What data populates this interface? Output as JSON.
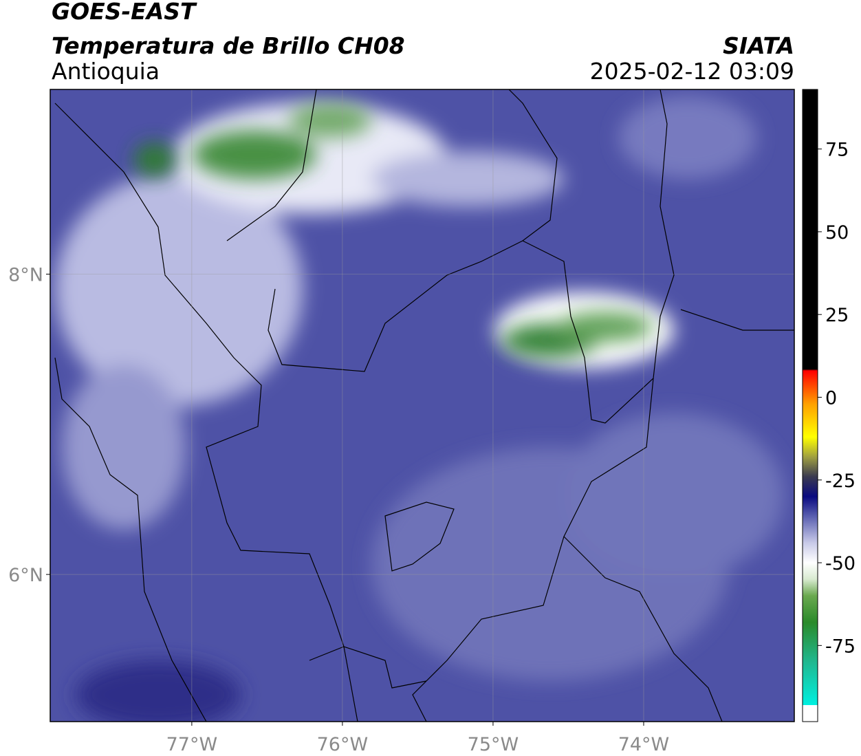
{
  "header": {
    "title": "GOES-EAST",
    "subtitle": "Temperatura de Brillo CH08",
    "region": "Antioquia",
    "source": "SIATA",
    "timestamp": "2025-02-12 03:09"
  },
  "map": {
    "xlim": [
      -77.94,
      -73.0
    ],
    "ylim": [
      5.02,
      9.23
    ],
    "xticks": [
      {
        "value": -77,
        "label": "77°W"
      },
      {
        "value": -76,
        "label": "76°W"
      },
      {
        "value": -75,
        "label": "75°W"
      },
      {
        "value": -74,
        "label": "74°W"
      }
    ],
    "yticks": [
      {
        "value": 8,
        "label": "8°N"
      },
      {
        "value": 6,
        "label": "6°N"
      }
    ],
    "grid": true
  },
  "colorbar": {
    "lim": [
      -98,
      93
    ],
    "ticks": [
      75,
      50,
      25,
      0,
      -25,
      -50,
      -75
    ],
    "stops": [
      {
        "value": -98,
        "color": "#ffffff"
      },
      {
        "value": -93,
        "color": "#ffffff"
      },
      {
        "value": -93,
        "color": "#00f0e0"
      },
      {
        "value": -80,
        "color": "#20b890"
      },
      {
        "value": -68,
        "color": "#2a8a2a"
      },
      {
        "value": -60,
        "color": "#6aa84f"
      },
      {
        "value": -55,
        "color": "#d8ead0"
      },
      {
        "value": -50,
        "color": "#ffffff"
      },
      {
        "value": -44,
        "color": "#c8cae8"
      },
      {
        "value": -36,
        "color": "#5a5fb0"
      },
      {
        "value": -30,
        "color": "#0a0a80"
      },
      {
        "value": -24,
        "color": "#3a3a50"
      },
      {
        "value": -18,
        "color": "#a0a040"
      },
      {
        "value": -12,
        "color": "#ffff00"
      },
      {
        "value": -2,
        "color": "#ffa000"
      },
      {
        "value": 8,
        "color": "#ff0000"
      },
      {
        "value": 8.5,
        "color": "#000000"
      },
      {
        "value": 93,
        "color": "#000000"
      }
    ]
  }
}
